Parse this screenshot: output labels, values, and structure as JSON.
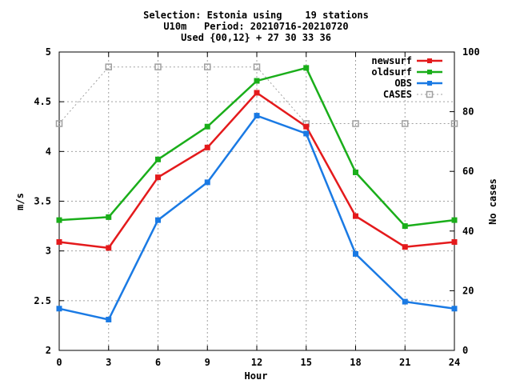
{
  "chart_data": {
    "type": "line",
    "title_lines": [
      "Selection: Estonia using    19 stations",
      "U10m   Period: 20210716-20210720",
      "Used {00,12} + 27 30 33 36"
    ],
    "xlabel": "Hour",
    "ylabel": "m/s",
    "y2label": "No cases",
    "x": [
      0,
      3,
      6,
      9,
      12,
      15,
      18,
      21,
      24
    ],
    "xlim": [
      0,
      24
    ],
    "ylim": [
      2,
      5
    ],
    "y2lim": [
      0,
      100
    ],
    "x_ticks": [
      "0",
      "3",
      "6",
      "9",
      "12",
      "15",
      "18",
      "21",
      "24"
    ],
    "y_ticks": [
      "2",
      "2.5",
      "3",
      "3.5",
      "4",
      "4.5",
      "5"
    ],
    "y2_ticks": [
      "0",
      "20",
      "40",
      "60",
      "80",
      "100"
    ],
    "grid": true,
    "legend_position": "top-right",
    "series": [
      {
        "name": "newsurf",
        "color": "#e41a1c",
        "marker": "filled-square",
        "dash": "solid",
        "values": [
          3.09,
          3.03,
          3.74,
          4.04,
          4.59,
          4.25,
          3.35,
          3.04,
          3.09
        ],
        "axis": "left"
      },
      {
        "name": "oldsurf",
        "color": "#1aae1a",
        "marker": "filled-square",
        "dash": "solid",
        "values": [
          3.31,
          3.34,
          3.92,
          4.25,
          4.71,
          4.84,
          3.79,
          3.25,
          3.31
        ],
        "axis": "left"
      },
      {
        "name": "OBS",
        "color": "#1a7ae4",
        "marker": "filled-square",
        "dash": "solid",
        "values": [
          2.42,
          2.31,
          3.31,
          3.69,
          4.36,
          4.18,
          2.97,
          2.49,
          2.42
        ],
        "axis": "left"
      },
      {
        "name": "CASES",
        "color": "#a0a0a0",
        "marker": "open-square",
        "dash": "dotted",
        "values": [
          76,
          95,
          95,
          95,
          95,
          76,
          76,
          76,
          76
        ],
        "axis": "right"
      }
    ]
  }
}
